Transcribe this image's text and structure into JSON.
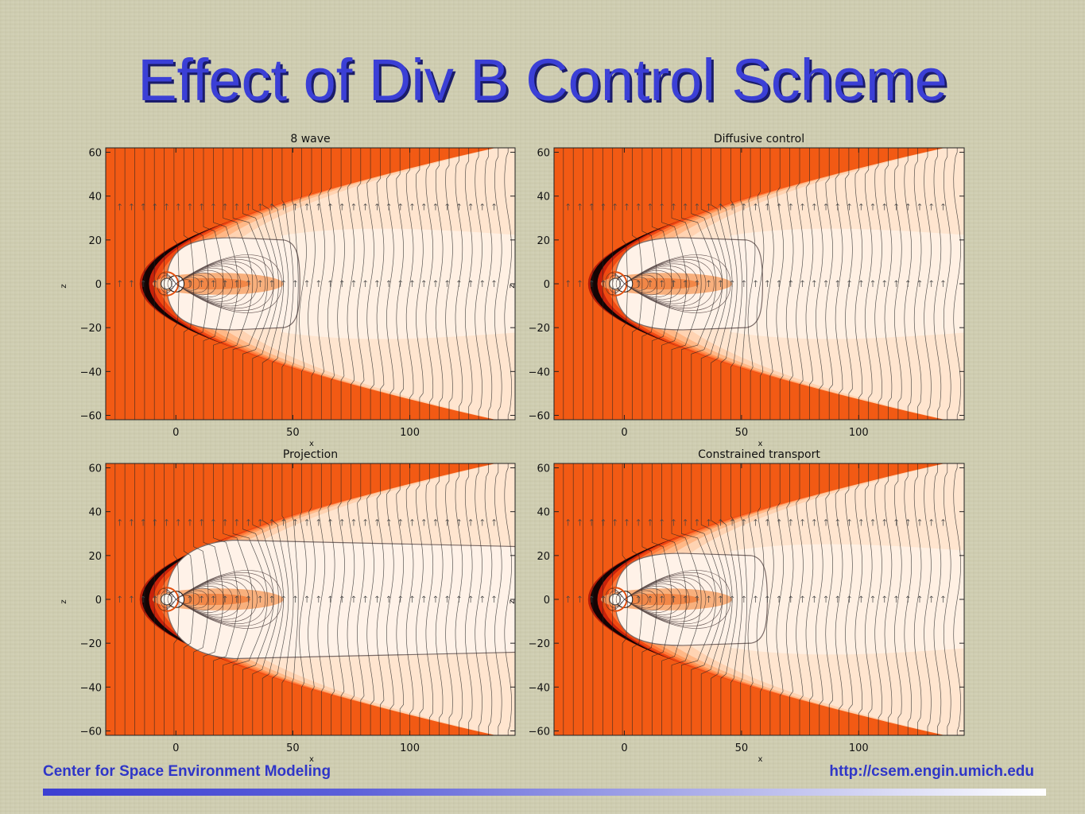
{
  "slide": {
    "title": "Effect of Div B Control Scheme",
    "footer_left": "Center for Space Environment Modeling",
    "footer_right": "http://csem.engin.umich.edu"
  },
  "colors": {
    "title": "#3b3fd6",
    "footer_text": "#2f36c8",
    "solar_wind": "#f25a14",
    "bow_shock": "#140404",
    "magnetosheath": [
      "#ff7a3a",
      "#ff9a5c",
      "#ffb887",
      "#ffd3b2",
      "#ffe5cf"
    ],
    "magnetosphere": "#fff2e8",
    "field_lines": "#222222"
  },
  "chart_data": [
    {
      "type": "heatmap",
      "title": "8 wave",
      "xlabel": "x",
      "ylabel": "z",
      "xlim": [
        -30,
        145
      ],
      "ylim": [
        -62,
        62
      ],
      "xticks": [
        "0",
        "50",
        "100"
      ],
      "yticks": [
        "60",
        "40",
        "20",
        "0",
        "−20",
        "−40",
        "−60"
      ],
      "grid": false,
      "magnetopause": "closed-blunt",
      "magnetopause_tail_x": 52
    },
    {
      "type": "heatmap",
      "title": "Diffusive control",
      "xlabel": "x",
      "ylabel": "z",
      "xlim": [
        -30,
        145
      ],
      "ylim": [
        -62,
        62
      ],
      "xticks": [
        "0",
        "50",
        "100"
      ],
      "yticks": [
        "60",
        "40",
        "20",
        "0",
        "−20",
        "−40",
        "−60"
      ],
      "grid": false,
      "magnetopause": "closed-blunt",
      "magnetopause_tail_x": 58
    },
    {
      "type": "heatmap",
      "title": "Projection",
      "xlabel": "x",
      "ylabel": "z",
      "xlim": [
        -30,
        145
      ],
      "ylim": [
        -62,
        62
      ],
      "xticks": [
        "0",
        "50",
        "100"
      ],
      "yticks": [
        "60",
        "40",
        "20",
        "0",
        "−20",
        "−40",
        "−60"
      ],
      "grid": false,
      "magnetopause": "open",
      "magnetopause_tail_x": 50
    },
    {
      "type": "heatmap",
      "title": "Constrained transport",
      "xlabel": "x",
      "ylabel": "z",
      "xlim": [
        -30,
        145
      ],
      "ylim": [
        -62,
        62
      ],
      "xticks": [
        "0",
        "50",
        "100"
      ],
      "yticks": [
        "60",
        "40",
        "20",
        "0",
        "−20",
        "−40",
        "−60"
      ],
      "grid": false,
      "magnetopause": "closed-blunt",
      "magnetopause_tail_x": 60
    }
  ]
}
